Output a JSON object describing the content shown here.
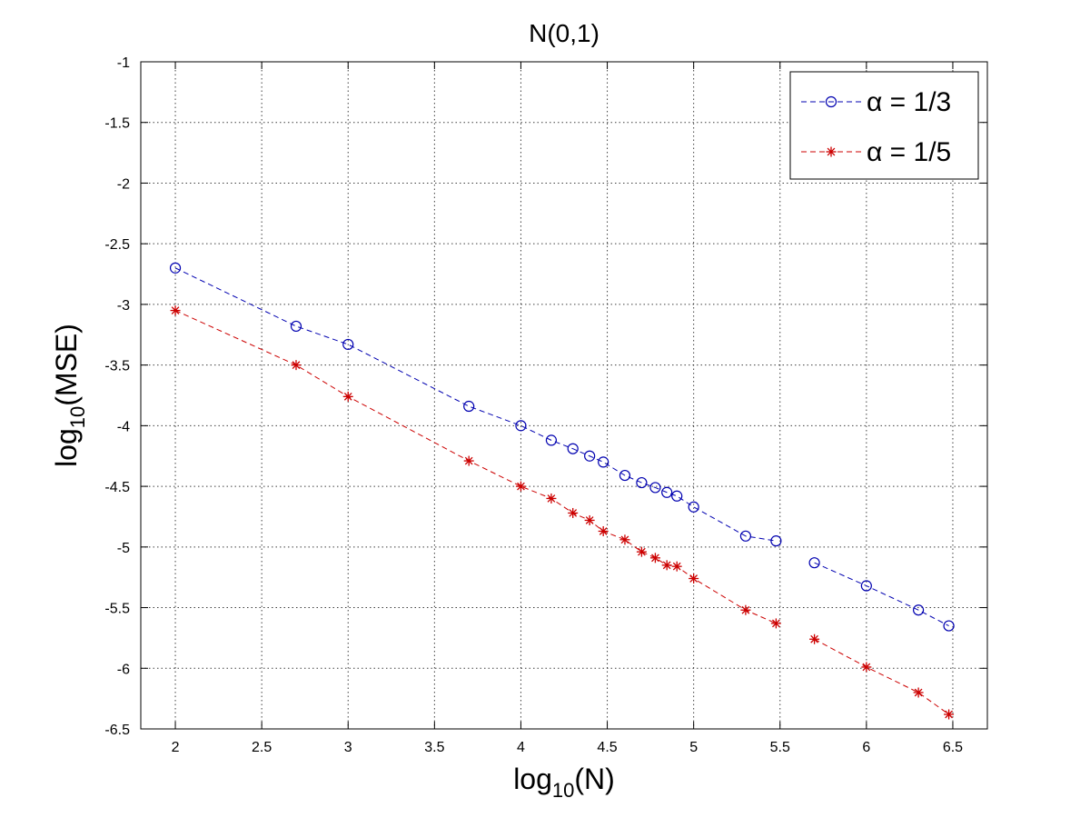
{
  "chart_data": {
    "type": "line",
    "title": "N(0,1)",
    "xlabel": {
      "base": "log",
      "sub": "10",
      "rest": "(N)"
    },
    "ylabel": {
      "base": "log",
      "sub": "10",
      "rest": "(MSE)"
    },
    "xlim": [
      1.8,
      6.7
    ],
    "ylim": [
      -6.5,
      -1
    ],
    "xticks": [
      2,
      2.5,
      3,
      3.5,
      4,
      4.5,
      5,
      5.5,
      6,
      6.5
    ],
    "xtick_labels": [
      "2",
      "2.5",
      "3",
      "3.5",
      "4",
      "4.5",
      "5",
      "5.5",
      "6",
      "6.5"
    ],
    "yticks": [
      -1,
      -1.5,
      -2,
      -2.5,
      -3,
      -3.5,
      -4,
      -4.5,
      -5,
      -5.5,
      -6,
      -6.5
    ],
    "ytick_labels": [
      "-1",
      "-1.5",
      "-2",
      "-2.5",
      "-3",
      "-3.5",
      "-4",
      "-4.5",
      "-5",
      "-5.5",
      "-6",
      "-6.5"
    ],
    "grid": true,
    "legend_position": "top-right",
    "series": [
      {
        "name": "α = 1/3",
        "color": "#0000b0",
        "marker": "circle",
        "line_style": "dashed",
        "segments": [
          {
            "x": [
              2,
              2.699,
              3,
              3.699,
              4,
              4.176,
              4.301,
              4.398,
              4.477,
              4.602,
              4.699,
              4.778,
              4.845,
              4.903,
              5,
              5.301,
              5.477
            ],
            "y": [
              -2.7,
              -3.18,
              -3.33,
              -3.84,
              -4.0,
              -4.12,
              -4.19,
              -4.25,
              -4.3,
              -4.41,
              -4.47,
              -4.51,
              -4.55,
              -4.58,
              -4.67,
              -4.91,
              -4.95
            ]
          },
          {
            "x": [
              5.699,
              6,
              6.301,
              6.477
            ],
            "y": [
              -5.13,
              -5.32,
              -5.52,
              -5.65
            ]
          }
        ]
      },
      {
        "name": "α = 1/5",
        "color": "#cc0000",
        "marker": "asterisk",
        "line_style": "dashed",
        "segments": [
          {
            "x": [
              2,
              2.699,
              3,
              3.699,
              4,
              4.176,
              4.301,
              4.398,
              4.477,
              4.602,
              4.699,
              4.778,
              4.845,
              4.903,
              5,
              5.301,
              5.477
            ],
            "y": [
              -3.05,
              -3.5,
              -3.76,
              -4.29,
              -4.5,
              -4.6,
              -4.72,
              -4.78,
              -4.87,
              -4.94,
              -5.04,
              -5.09,
              -5.15,
              -5.16,
              -5.26,
              -5.52,
              -5.63
            ]
          },
          {
            "x": [
              5.699,
              6,
              6.301,
              6.477
            ],
            "y": [
              -5.76,
              -5.99,
              -6.2,
              -6.38
            ]
          }
        ]
      }
    ]
  }
}
